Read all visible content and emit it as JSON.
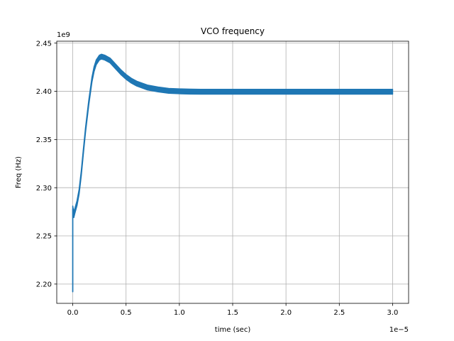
{
  "chart_data": {
    "type": "line",
    "title": "VCO frequency",
    "xlabel": "time (sec)",
    "ylabel": "Freq (Hz)",
    "x_offset_label": "1e−5",
    "y_offset_label": "1e9",
    "x_ticks": [
      0.0,
      0.5,
      1.0,
      1.5,
      2.0,
      2.5,
      3.0
    ],
    "x_tick_labels": [
      "0.0",
      "0.5",
      "1.0",
      "1.5",
      "2.0",
      "2.5",
      "3.0"
    ],
    "y_ticks": [
      2.2,
      2.25,
      2.3,
      2.35,
      2.4,
      2.45
    ],
    "y_tick_labels": [
      "2.20",
      "2.25",
      "2.30",
      "2.35",
      "2.40",
      "2.45"
    ],
    "xlim": [
      -0.15,
      3.15
    ],
    "ylim": [
      2.18,
      2.452
    ],
    "grid": true,
    "series": [
      {
        "color": "#1f77b4",
        "x": [
          0.0,
          0.0,
          0.01,
          0.02,
          0.04,
          0.06,
          0.08,
          0.1,
          0.12,
          0.15,
          0.18,
          0.2,
          0.22,
          0.25,
          0.27,
          0.3,
          0.35,
          0.4,
          0.45,
          0.5,
          0.55,
          0.6,
          0.7,
          0.8,
          0.9,
          1.0,
          1.1,
          1.2,
          1.3,
          1.5,
          1.75,
          2.0,
          2.25,
          2.5,
          2.75,
          3.0
        ],
        "y": [
          2.192,
          2.278,
          2.272,
          2.276,
          2.284,
          2.296,
          2.315,
          2.338,
          2.36,
          2.388,
          2.412,
          2.423,
          2.43,
          2.435,
          2.436,
          2.435,
          2.432,
          2.426,
          2.42,
          2.415,
          2.411,
          2.408,
          2.404,
          2.402,
          2.4005,
          2.4,
          2.3997,
          2.3996,
          2.3996,
          2.3996,
          2.3996,
          2.3996,
          2.3996,
          2.3996,
          2.3996,
          2.3996
        ],
        "band_width": [
          0,
          0.006,
          0.006,
          0.005,
          0.005,
          0.005,
          0.005,
          0.005,
          0.005,
          0.005,
          0.005,
          0.005,
          0.005,
          0.005,
          0.005,
          0.005,
          0.005,
          0.005,
          0.005,
          0.005,
          0.005,
          0.005,
          0.005,
          0.005,
          0.005,
          0.005,
          0.005,
          0.005,
          0.005,
          0.005,
          0.005,
          0.005,
          0.005,
          0.005,
          0.005,
          0.005
        ]
      }
    ]
  }
}
